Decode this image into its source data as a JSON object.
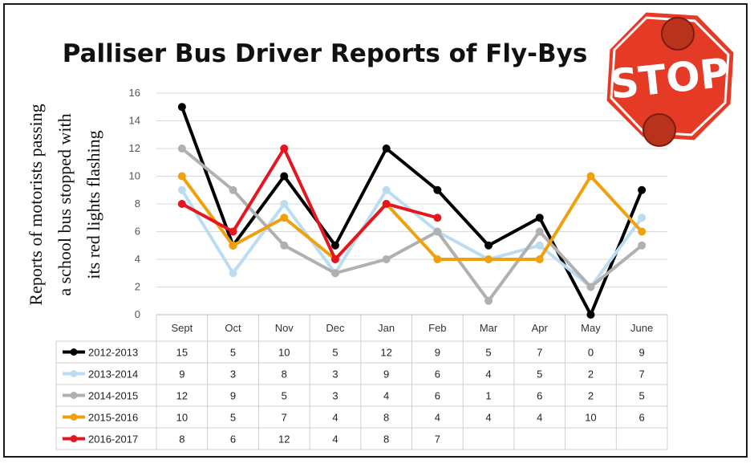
{
  "chart_data": {
    "type": "line",
    "title": "Palliser Bus Driver Reports of Fly-Bys",
    "ylabel": "Reports of motorists  passing a school bus stopped with its red lights flashing",
    "ylabel_lines": [
      "Reports of motorists  passing",
      "a school bus stopped with",
      "its red lights flashing"
    ],
    "xlabel": "",
    "categories": [
      "Sept",
      "Oct",
      "Nov",
      "Dec",
      "Jan",
      "Feb",
      "Mar",
      "Apr",
      "May",
      "June"
    ],
    "yticks": [
      "0",
      "2",
      "4",
      "6",
      "8",
      "10",
      "12",
      "14",
      "16"
    ],
    "ylim": [
      0,
      16
    ],
    "grid": true,
    "legend": "data-table-below",
    "series": [
      {
        "name": "2012-2013",
        "color": "#000000",
        "values": [
          15,
          5,
          10,
          5,
          12,
          9,
          5,
          7,
          0,
          9
        ]
      },
      {
        "name": "2013-2014",
        "color": "#bcdcf2",
        "values": [
          9,
          3,
          8,
          3,
          9,
          6,
          4,
          5,
          2,
          7
        ]
      },
      {
        "name": "2014-2015",
        "color": "#b0b0b0",
        "values": [
          12,
          9,
          5,
          3,
          4,
          6,
          1,
          6,
          2,
          5
        ]
      },
      {
        "name": "2015-2016",
        "color": "#f0a00c",
        "values": [
          10,
          5,
          7,
          4,
          8,
          4,
          4,
          4,
          10,
          6
        ]
      },
      {
        "name": "2016-2017",
        "color": "#e4161e",
        "values": [
          8,
          6,
          12,
          4,
          8,
          7,
          null,
          null,
          null,
          null
        ]
      }
    ]
  },
  "stop_sign": {
    "text": "STOP",
    "sign_color": "#e53a26",
    "light_color": "#b8321c"
  }
}
